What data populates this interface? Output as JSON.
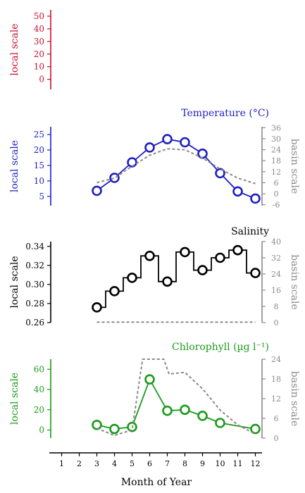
{
  "x_axis": {
    "label": "Month of Year",
    "ticks": [
      "1",
      "2",
      "3",
      "4",
      "5",
      "6",
      "7",
      "8",
      "9",
      "10",
      "11",
      "12"
    ],
    "range": [
      0.5,
      12.5
    ]
  },
  "chart_data": [
    {
      "type": "line",
      "title": "",
      "ylabel": "local scale",
      "ylim": [
        -8,
        55
      ],
      "yticks": [
        0,
        10,
        20,
        30,
        40,
        50
      ],
      "color": "#c8102e",
      "series": []
    },
    {
      "type": "line",
      "title": "Temperature (°C)",
      "ylabel": "local scale",
      "ylim": [
        2,
        27.5
      ],
      "yticks": [
        5,
        10,
        15,
        20,
        25
      ],
      "y2label": "basin scale",
      "y2lim": [
        -6.5,
        36.5
      ],
      "y2ticks": [
        -6,
        0,
        6,
        12,
        18,
        24,
        30,
        36
      ],
      "color": "#1f1fbf",
      "series": [
        {
          "axis": "local",
          "style": "line-markers",
          "x": [
            3,
            4,
            5,
            6,
            7,
            8,
            9,
            10,
            11,
            12
          ],
          "values": [
            6.8,
            11.0,
            16.0,
            20.8,
            23.5,
            22.5,
            18.8,
            12.5,
            6.6,
            4.3
          ]
        },
        {
          "axis": "basin",
          "style": "dashed",
          "x": [
            3,
            4,
            5,
            6,
            7,
            8,
            9,
            10,
            11,
            12
          ],
          "values": [
            6.0,
            8.5,
            15.0,
            21.0,
            24.5,
            24.0,
            19.5,
            13.5,
            8.5,
            5.5
          ]
        }
      ]
    },
    {
      "type": "line",
      "title": "Salinity",
      "ylabel": "local scale",
      "ylim": [
        0.26,
        0.345
      ],
      "yticks": [
        0.26,
        0.28,
        0.3,
        0.32,
        0.34
      ],
      "y2label": "basin scale",
      "y2lim": [
        0,
        40
      ],
      "y2ticks": [
        0,
        8,
        16,
        24,
        32,
        40
      ],
      "color": "#000000",
      "series": [
        {
          "axis": "local",
          "style": "step-markers",
          "x": [
            3,
            4,
            5,
            6,
            7,
            8,
            9,
            10,
            11,
            12
          ],
          "values": [
            0.276,
            0.293,
            0.307,
            0.33,
            0.303,
            0.334,
            0.315,
            0.328,
            0.336,
            0.312
          ]
        },
        {
          "axis": "basin",
          "style": "dashed",
          "x": [
            3,
            4,
            5,
            6,
            7,
            8,
            9,
            10,
            11,
            12
          ],
          "values": [
            0.2,
            0.2,
            0.2,
            0.2,
            0.2,
            0.2,
            0.2,
            0.2,
            0.2,
            0.2
          ]
        }
      ]
    },
    {
      "type": "line",
      "title": "Chlorophyll (µg l⁻¹)",
      "ylabel": "local scale",
      "ylim": [
        -8,
        70
      ],
      "yticks": [
        0,
        20,
        40,
        60
      ],
      "y2label": "basin scale",
      "y2lim": [
        0,
        24
      ],
      "y2ticks": [
        0,
        6,
        12,
        18,
        24
      ],
      "color": "#1a9a1a",
      "series": [
        {
          "axis": "local",
          "style": "line-markers",
          "x": [
            3,
            4,
            5,
            6,
            7,
            8,
            9,
            10,
            12
          ],
          "values": [
            5,
            1,
            3,
            50,
            19,
            20,
            14,
            7,
            1
          ]
        },
        {
          "axis": "basin",
          "style": "dashed",
          "x": [
            3,
            4,
            5,
            5.6,
            6.8,
            7.1,
            8,
            9,
            10,
            11,
            12
          ],
          "values": [
            3.0,
            0.8,
            2.5,
            24,
            24,
            19.5,
            20,
            15,
            8.5,
            4.0,
            1.2
          ]
        }
      ]
    }
  ]
}
